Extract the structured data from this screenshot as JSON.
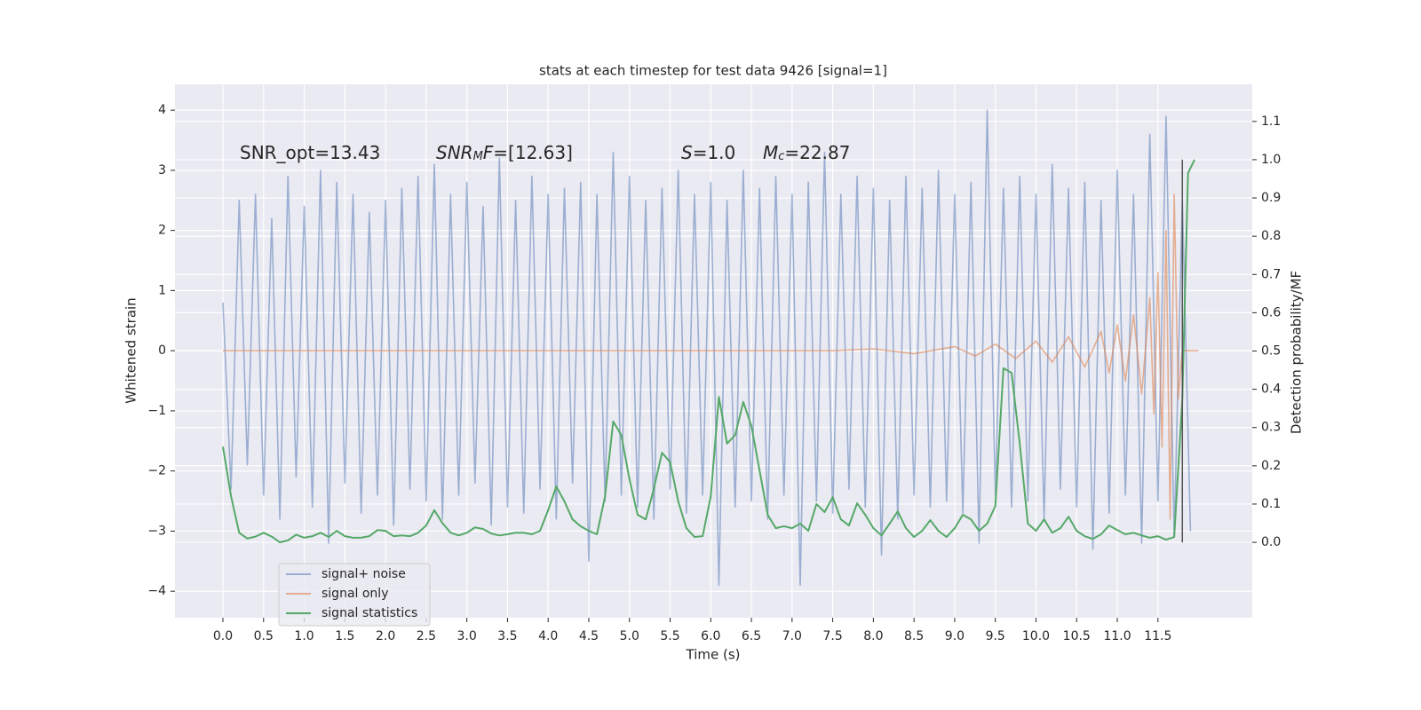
{
  "chart_data": {
    "type": "line",
    "title": "stats at each timestep for test data 9426 [signal=1]",
    "xlabel": "Time (s)",
    "ylabel": "Whitened strain",
    "y2label": "Detection probability/MF",
    "xlim": [
      -0.59,
      12.66
    ],
    "ylim": [
      -4.44,
      4.43
    ],
    "y2lim": [
      -0.197,
      1.197
    ],
    "xticks": [
      {
        "value": 0,
        "label": "0.0"
      },
      0.5,
      {
        "value": 1,
        "label": "1.0"
      },
      1.5,
      {
        "value": 2,
        "label": "2.0"
      },
      2.5,
      {
        "value": 3,
        "label": "3.0"
      },
      3.5,
      {
        "value": 4,
        "label": "4.0"
      },
      4.5,
      {
        "value": 5,
        "label": "5.0"
      },
      5.5,
      {
        "value": 6,
        "label": "6.0"
      },
      6.5,
      {
        "value": 7,
        "label": "7.0"
      },
      7.5,
      {
        "value": 8,
        "label": "8.0"
      },
      8.5,
      {
        "value": 9,
        "label": "9.0"
      },
      9.5,
      {
        "value": 10,
        "label": "10.0"
      },
      10.5,
      {
        "value": 11,
        "label": "11.0"
      },
      11.5
    ],
    "yticks": [
      {
        "value": -4,
        "label": "−4"
      },
      {
        "value": -3,
        "label": "−3"
      },
      {
        "value": -2,
        "label": "−2"
      },
      {
        "value": -1,
        "label": "−1"
      },
      0,
      1,
      2,
      3,
      4
    ],
    "y2ticks": [
      {
        "value": 0,
        "label": "0.0"
      },
      0.1,
      0.2,
      0.3,
      0.4,
      0.5,
      0.6,
      0.7,
      0.8,
      0.9,
      {
        "value": 1,
        "label": "1.0"
      },
      1.1
    ],
    "grid": true,
    "legend": "lower left",
    "series": [
      {
        "name": "signal+ noise",
        "color": "#4c72b0",
        "opacity": 0.5,
        "x": [
          0,
          0.1,
          0.2,
          0.3,
          0.4,
          0.5,
          0.6,
          0.7,
          0.8,
          0.9,
          1,
          1.1,
          1.2,
          1.3,
          1.4,
          1.5,
          1.6,
          1.7,
          1.8,
          1.9,
          2,
          2.1,
          2.2,
          2.3,
          2.4,
          2.5,
          2.6,
          2.7,
          2.8,
          2.9,
          3,
          3.1,
          3.2,
          3.3,
          3.4,
          3.5,
          3.6,
          3.7,
          3.8,
          3.9,
          4,
          4.1,
          4.2,
          4.3,
          4.4,
          4.5,
          4.6,
          4.7,
          4.8,
          4.9,
          5,
          5.1,
          5.2,
          5.3,
          5.4,
          5.5,
          5.6,
          5.7,
          5.8,
          5.9,
          6,
          6.1,
          6.2,
          6.3,
          6.4,
          6.5,
          6.6,
          6.7,
          6.8,
          6.9,
          7,
          7.1,
          7.2,
          7.3,
          7.4,
          7.5,
          7.6,
          7.7,
          7.8,
          7.9,
          8,
          8.1,
          8.2,
          8.3,
          8.4,
          8.5,
          8.6,
          8.7,
          8.8,
          8.9,
          9,
          9.1,
          9.2,
          9.3,
          9.4,
          9.5,
          9.6,
          9.7,
          9.8,
          9.9,
          10,
          10.1,
          10.2,
          10.3,
          10.4,
          10.5,
          10.6,
          10.7,
          10.8,
          10.9,
          11,
          11.1,
          11.2,
          11.3,
          11.4,
          11.5,
          11.6,
          11.7,
          11.8,
          11.9
        ],
        "values": [
          0.8,
          -2.3,
          2.5,
          -1.9,
          2.6,
          -2.4,
          2.2,
          -2.8,
          2.9,
          -2.1,
          2.4,
          -2.6,
          3.0,
          -3.2,
          2.8,
          -2.2,
          2.6,
          -2.7,
          2.3,
          -2.4,
          2.5,
          -2.9,
          2.7,
          -2.3,
          2.9,
          -2.5,
          3.1,
          -2.8,
          2.6,
          -2.4,
          2.8,
          -2.2,
          2.4,
          -2.9,
          3.2,
          -2.6,
          2.5,
          -2.7,
          2.9,
          -2.3,
          2.6,
          -2.8,
          2.7,
          -2.2,
          2.8,
          -3.5,
          2.6,
          -2.5,
          3.3,
          -2.4,
          2.9,
          -2.6,
          2.5,
          -2.8,
          2.7,
          -2.3,
          3.0,
          -2.7,
          2.6,
          -2.4,
          2.8,
          -3.9,
          2.5,
          -2.6,
          3.0,
          -2.5,
          2.7,
          -2.8,
          2.9,
          -2.4,
          2.6,
          -3.9,
          2.8,
          -2.5,
          3.3,
          -2.7,
          2.6,
          -2.3,
          2.9,
          -2.6,
          2.7,
          -3.4,
          2.5,
          -2.8,
          2.9,
          -2.4,
          2.7,
          -2.6,
          3.0,
          -2.5,
          2.6,
          -2.7,
          2.8,
          -3.2,
          4.0,
          -2.4,
          2.7,
          -2.6,
          2.9,
          -2.5,
          2.6,
          -2.8,
          3.1,
          -2.3,
          2.7,
          -2.6,
          2.8,
          -3.3,
          2.5,
          -2.7,
          3.0,
          -2.4,
          2.6,
          -3.2,
          3.6,
          -2.5,
          3.9,
          -3.1,
          2.5,
          -3.0
        ]
      },
      {
        "name": "signal only",
        "color": "#dd8452",
        "opacity": 0.6,
        "x": [
          0,
          7.5,
          8.0,
          8.5,
          9.0,
          9.25,
          9.5,
          9.75,
          10.0,
          10.2,
          10.4,
          10.6,
          10.8,
          10.9,
          11.0,
          11.1,
          11.2,
          11.3,
          11.4,
          11.45,
          11.5,
          11.55,
          11.6,
          11.65,
          11.7,
          11.75,
          11.8,
          12.0
        ],
        "values": [
          0,
          0,
          0.03,
          -0.05,
          0.07,
          -0.09,
          0.11,
          -0.13,
          0.16,
          -0.19,
          0.23,
          -0.27,
          0.32,
          -0.37,
          0.43,
          -0.5,
          0.6,
          -0.72,
          0.88,
          -1.05,
          1.3,
          -1.6,
          2.0,
          -2.8,
          2.6,
          -0.8,
          0,
          0
        ]
      },
      {
        "name": "signal statistics",
        "color": "#55a868",
        "opacity": 1,
        "axis": "y2",
        "x": [
          0,
          0.1,
          0.2,
          0.3,
          0.4,
          0.5,
          0.6,
          0.7,
          0.8,
          0.9,
          1,
          1.1,
          1.2,
          1.3,
          1.4,
          1.5,
          1.6,
          1.7,
          1.8,
          1.9,
          2,
          2.1,
          2.2,
          2.3,
          2.4,
          2.5,
          2.6,
          2.7,
          2.8,
          2.9,
          3,
          3.1,
          3.2,
          3.3,
          3.4,
          3.5,
          3.6,
          3.7,
          3.8,
          3.9,
          4,
          4.1,
          4.2,
          4.3,
          4.4,
          4.5,
          4.6,
          4.7,
          4.8,
          4.9,
          5,
          5.1,
          5.2,
          5.3,
          5.4,
          5.5,
          5.6,
          5.7,
          5.8,
          5.9,
          6,
          6.1,
          6.2,
          6.3,
          6.4,
          6.5,
          6.6,
          6.7,
          6.8,
          6.9,
          7,
          7.1,
          7.2,
          7.3,
          7.4,
          7.5,
          7.6,
          7.7,
          7.8,
          7.9,
          8,
          8.1,
          8.2,
          8.3,
          8.4,
          8.5,
          8.6,
          8.7,
          8.8,
          8.9,
          9,
          9.1,
          9.2,
          9.3,
          9.4,
          9.5,
          9.6,
          9.7,
          9.8,
          9.9,
          10,
          10.1,
          10.2,
          10.3,
          10.4,
          10.5,
          10.6,
          10.7,
          10.8,
          10.9,
          11,
          11.1,
          11.2,
          11.3,
          11.4,
          11.5,
          11.6,
          11.7,
          11.8,
          11.87,
          11.95
        ],
        "values": [
          0.25,
          0.12,
          0.025,
          0.01,
          0.015,
          0.025,
          0.015,
          0.0,
          0.005,
          0.02,
          0.012,
          0.016,
          0.025,
          0.014,
          0.03,
          0.016,
          0.012,
          0.012,
          0.016,
          0.032,
          0.03,
          0.016,
          0.018,
          0.016,
          0.025,
          0.044,
          0.084,
          0.05,
          0.025,
          0.018,
          0.025,
          0.039,
          0.035,
          0.023,
          0.018,
          0.021,
          0.025,
          0.025,
          0.021,
          0.03,
          0.084,
          0.146,
          0.107,
          0.06,
          0.042,
          0.03,
          0.021,
          0.12,
          0.316,
          0.28,
          0.165,
          0.072,
          0.06,
          0.14,
          0.234,
          0.21,
          0.107,
          0.037,
          0.014,
          0.016,
          0.12,
          0.38,
          0.258,
          0.28,
          0.367,
          0.304,
          0.188,
          0.072,
          0.037,
          0.042,
          0.037,
          0.049,
          0.03,
          0.1,
          0.079,
          0.118,
          0.06,
          0.044,
          0.102,
          0.072,
          0.037,
          0.018,
          0.049,
          0.081,
          0.037,
          0.014,
          0.03,
          0.058,
          0.03,
          0.014,
          0.037,
          0.072,
          0.06,
          0.03,
          0.049,
          0.095,
          0.455,
          0.443,
          0.258,
          0.049,
          0.03,
          0.06,
          0.025,
          0.037,
          0.067,
          0.03,
          0.016,
          0.009,
          0.021,
          0.044,
          0.032,
          0.021,
          0.025,
          0.018,
          0.012,
          0.016,
          0.007,
          0.014,
          0.374,
          0.965,
          1.0
        ]
      }
    ],
    "vline": {
      "x": 11.8,
      "y2span": [
        0,
        1
      ],
      "color": "#555555"
    },
    "annotations": [
      {
        "parts": [
          {
            "text": "SNR_opt=13.43"
          }
        ]
      },
      {
        "parts": [
          {
            "text": "SNR",
            "italic": true
          },
          {
            "text": "M",
            "italic": true,
            "sub": true
          },
          {
            "text": "F",
            "italic": true
          },
          {
            "text": "=[12.63]"
          }
        ]
      },
      {
        "parts": [
          {
            "text": "S",
            "italic": true
          },
          {
            "text": "=1.0"
          }
        ]
      },
      {
        "parts": [
          {
            "text": "M",
            "italic": true
          },
          {
            "text": "c",
            "italic": true,
            "sub": true
          },
          {
            "text": "=22.87"
          }
        ]
      }
    ]
  }
}
